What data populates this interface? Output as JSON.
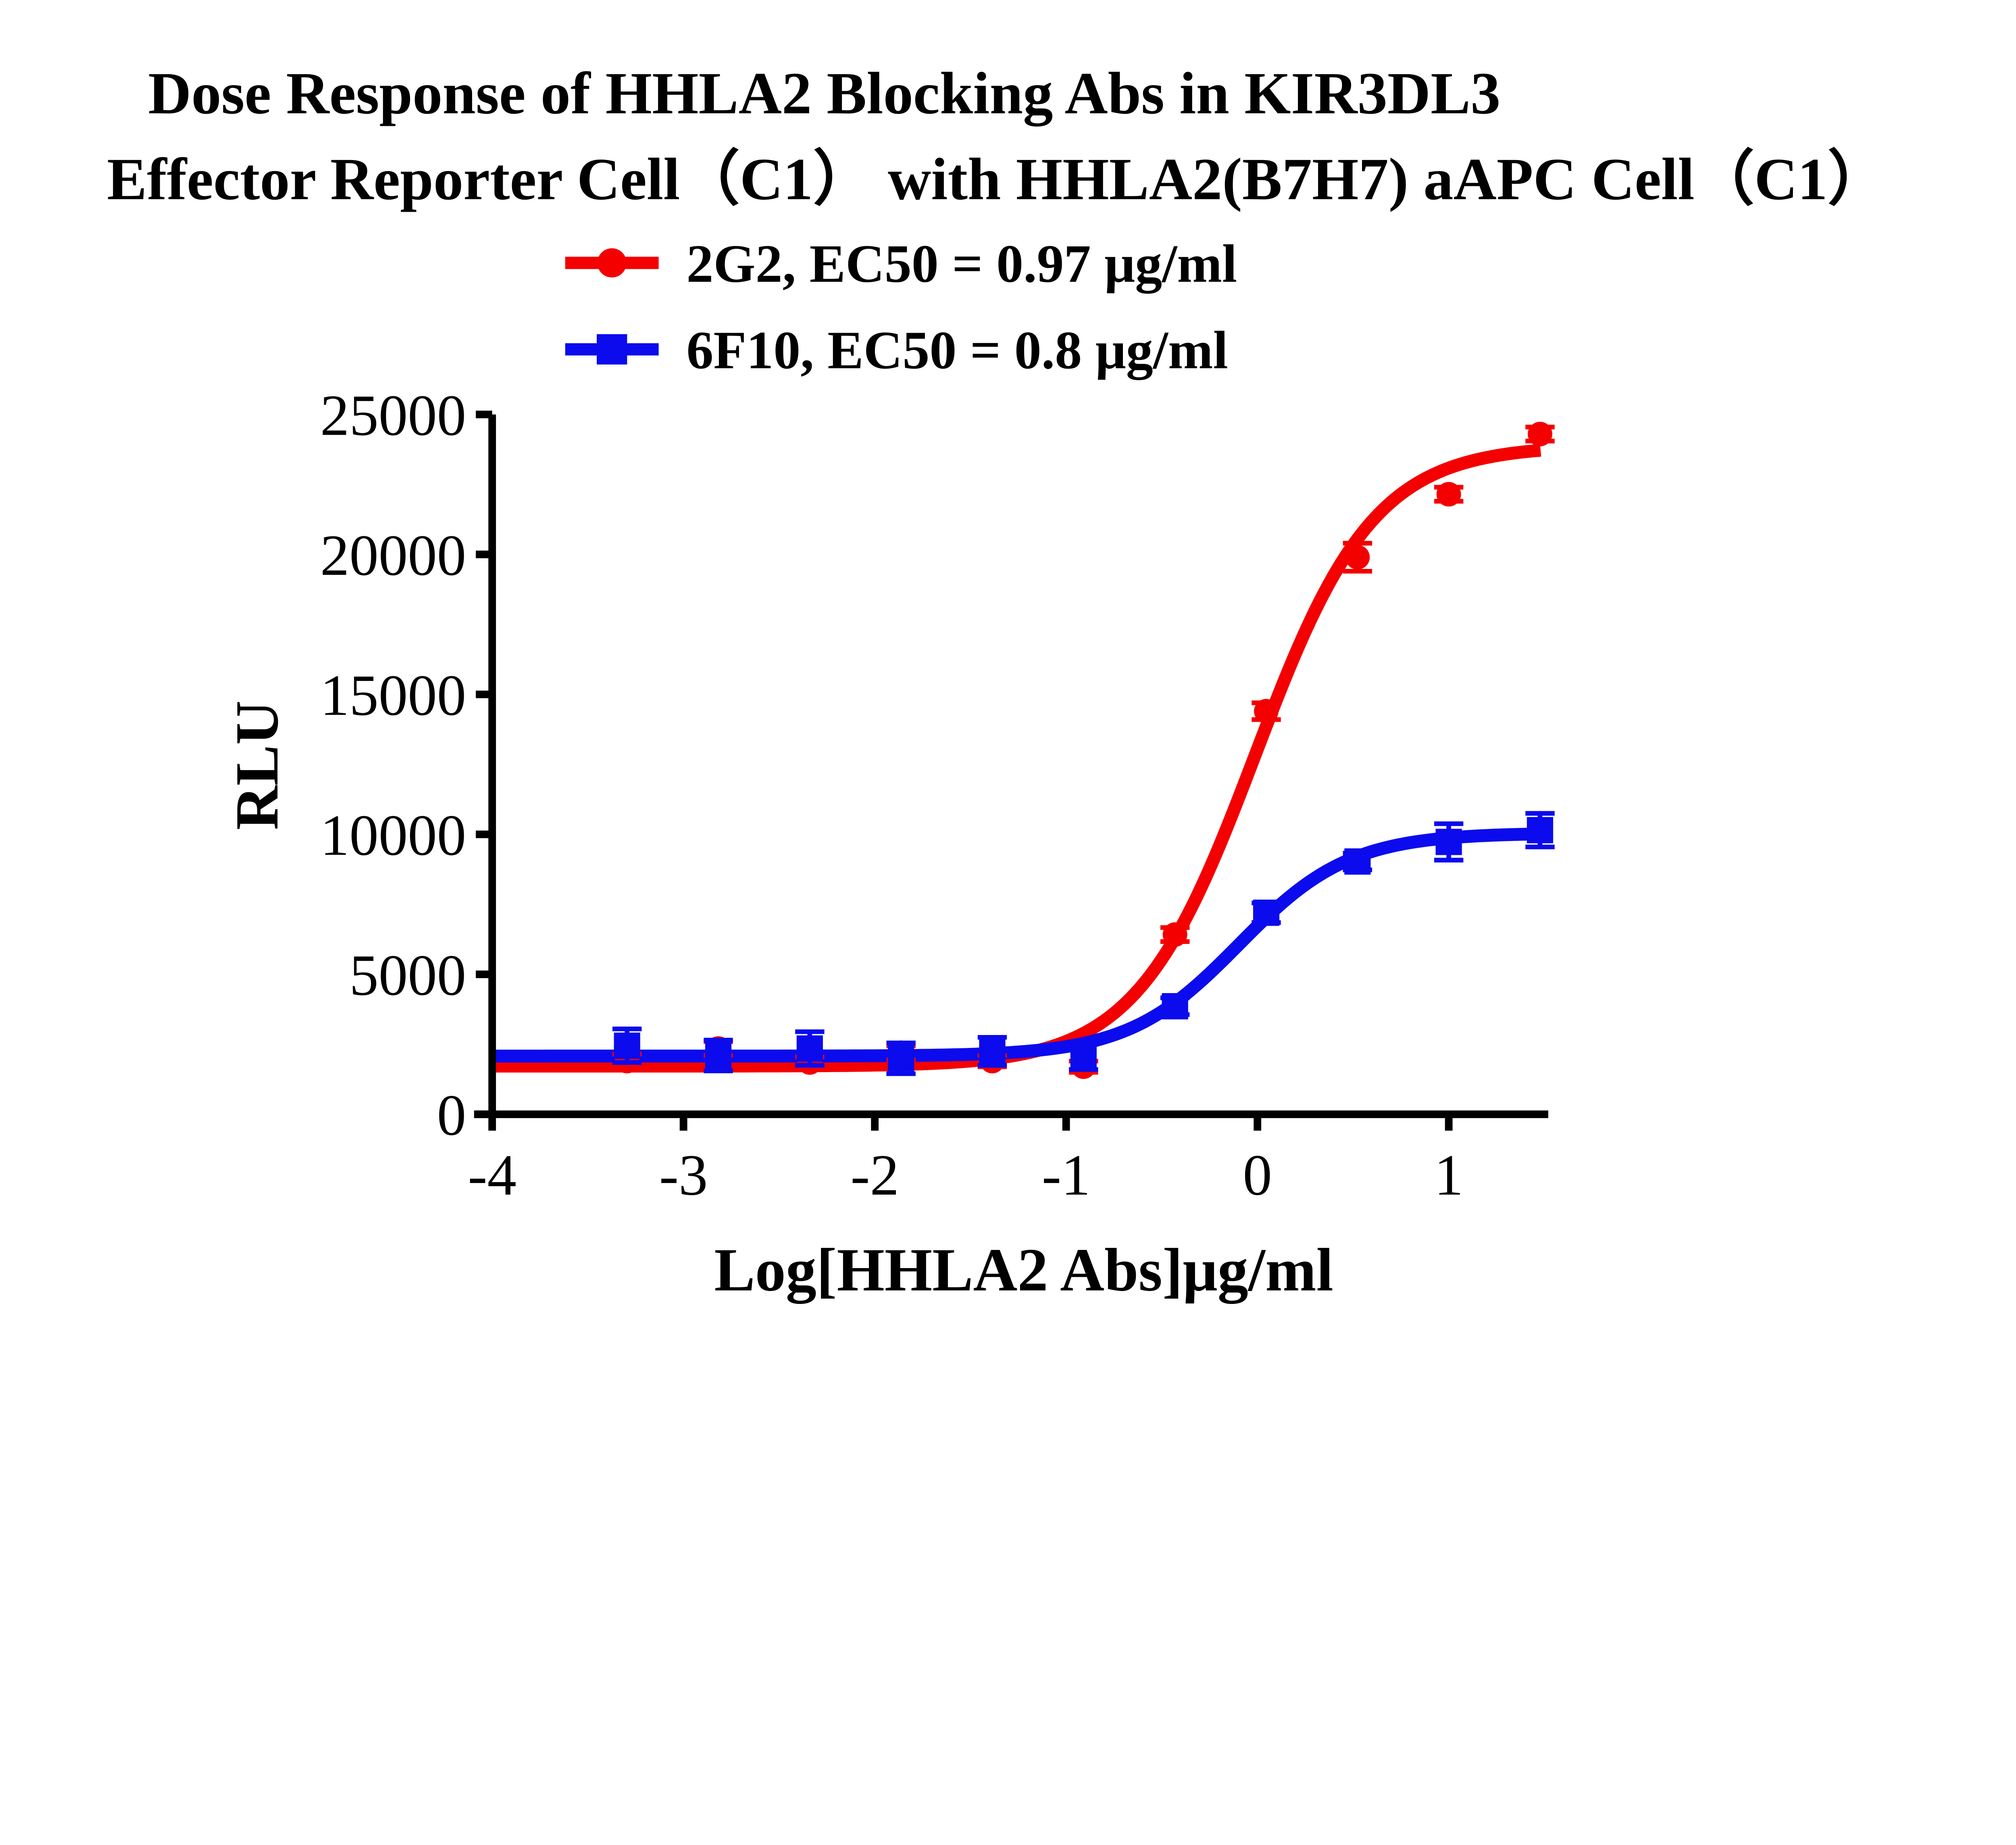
{
  "title": {
    "line1": "Dose Response of HHLA2 Blocking Abs in KIR3DL3",
    "line2": "Effector Reporter Cell（C1） with HHLA2(B7H7) aAPC Cell（C1）"
  },
  "legend": {
    "items": [
      {
        "label": "2G2, EC50 = 0.97 μg/ml",
        "series": "2G2"
      },
      {
        "label": "6F10, EC50 = 0.8 μg/ml",
        "series": "6F10"
      }
    ]
  },
  "colors": {
    "red_series": "#f40000",
    "blue_series": "#0b0bee",
    "axis": "#000000"
  },
  "chart_data": {
    "type": "scatter",
    "title": "Dose Response of HHLA2 Blocking Abs in KIR3DL3 Effector Reporter Cell（C1） with HHLA2(B7H7) aAPC Cell（C1）",
    "xlabel": "Log[HHLA2 Abs]μg/ml",
    "ylabel": "RLU",
    "xlim": [
      -4,
      1.52
    ],
    "ylim": [
      0,
      25000
    ],
    "grid": false,
    "legend_position": "top",
    "x_ticks": [
      {
        "v": -4,
        "label": "-4"
      },
      {
        "v": -3,
        "label": "-3"
      },
      {
        "v": -2,
        "label": "-2"
      },
      {
        "v": -1,
        "label": "-1"
      },
      {
        "v": 0,
        "label": "0"
      },
      {
        "v": 1,
        "label": "1"
      }
    ],
    "y_ticks": [
      {
        "v": 0,
        "label": "0"
      },
      {
        "v": 5000,
        "label": "5000"
      },
      {
        "v": 10000,
        "label": "10000"
      },
      {
        "v": 15000,
        "label": "15000"
      },
      {
        "v": 20000,
        "label": "20000"
      },
      {
        "v": 25000,
        "label": "25000"
      }
    ],
    "x": [
      -3.295,
      -2.818,
      -2.34,
      -1.863,
      -1.386,
      -0.909,
      -0.431,
      0.046,
      0.523,
      1.0,
      1.477
    ],
    "series": [
      {
        "name": "2G2",
        "ec50_ugml": 0.97,
        "marker": "circle",
        "color": "#f40000",
        "values": [
          1900,
          2350,
          1850,
          2200,
          1900,
          1700,
          6420,
          14400,
          19900,
          22150,
          24300
        ],
        "errors": [
          250,
          250,
          200,
          250,
          200,
          200,
          250,
          300,
          500,
          250,
          250
        ],
        "fit": {
          "model": "4PL",
          "bottom": 1720,
          "top": 23900,
          "logEC50": -0.0132,
          "hill": 1.4
        }
      },
      {
        "name": "6F10",
        "ec50_ugml": 0.8,
        "marker": "square",
        "color": "#0b0bee",
        "values": [
          2450,
          2100,
          2350,
          2000,
          2250,
          2050,
          3860,
          7200,
          9030,
          9730,
          10150
        ],
        "errors": [
          600,
          550,
          600,
          550,
          500,
          450,
          300,
          350,
          300,
          650,
          600
        ],
        "fit": {
          "model": "4PL",
          "bottom": 2080,
          "top": 10050,
          "logEC50": -0.0969,
          "hill": 1.5
        }
      }
    ]
  }
}
